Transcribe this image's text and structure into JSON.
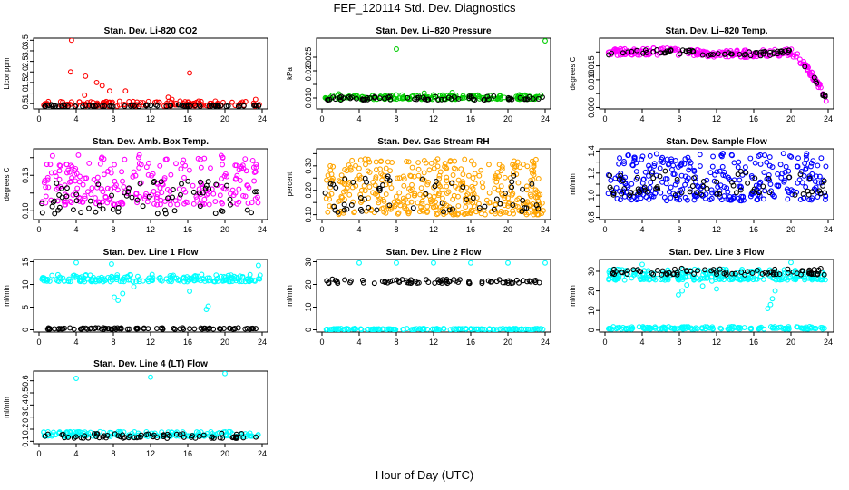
{
  "figure": {
    "title": "FEF_120114  Std. Dev. Diagnostics",
    "xlabel": "Hour of Day (UTC)"
  },
  "chart_data": [
    {
      "type": "scatter",
      "title": "Stan. Dev. Li-820 CO2",
      "ylabel": "Licor ppm",
      "xlim": [
        0,
        24
      ],
      "ylim": [
        0.25,
        3.6
      ],
      "xticks": [
        "0",
        "4",
        "8",
        "12",
        "16",
        "20",
        "24"
      ],
      "yticks": [
        0.5,
        1.0,
        1.5,
        2.0,
        2.5,
        3.0,
        3.5
      ],
      "ytick_labels": [
        "0.5",
        "1.0",
        "1.5",
        "2.0",
        "2.5",
        "3.0",
        "3.5"
      ],
      "series": [
        {
          "color": "#ff0000",
          "x": [
            3.5,
            3.4,
            5.0,
            6.2,
            6.8,
            7.6,
            9.3,
            16.2,
            4.9,
            13.9,
            14.3,
            23.3,
            1.0,
            6.9,
            11.2
          ],
          "y": [
            3.5,
            2.0,
            1.8,
            1.5,
            1.35,
            1.1,
            1.1,
            1.95,
            0.9,
            0.8,
            0.7,
            0.7,
            0.6,
            0.55,
            0.55
          ],
          "band": [
            0.38,
            0.62
          ],
          "n": 130
        },
        {
          "color": "#000000",
          "band": [
            0.37,
            0.45
          ],
          "n": 70
        }
      ]
    },
    {
      "type": "scatter",
      "title": "Stan. Dev. Li–820 Pressure",
      "ylabel": "kPa",
      "xlim": [
        0,
        24
      ],
      "ylim": [
        0.006,
        0.032
      ],
      "xticks": [
        "0",
        "4",
        "8",
        "12",
        "16",
        "20",
        "24"
      ],
      "yticks": [
        0.01,
        0.015,
        0.02,
        0.025
      ],
      "ytick_labels": [
        "0.010",
        "",
        "0.020",
        "0.025"
      ],
      "series": [
        {
          "color": "#00cc00",
          "x": [
            8.0,
            24.0,
            14.0,
            1.8,
            11.0
          ],
          "y": [
            0.028,
            0.031,
            0.012,
            0.0115,
            0.0118
          ],
          "band": [
            0.0095,
            0.0112
          ],
          "n": 180
        },
        {
          "color": "#000000",
          "band": [
            0.0093,
            0.0108
          ],
          "n": 70
        }
      ]
    },
    {
      "type": "scatter",
      "title": "Stan. Dev. Li–820 Temp.",
      "ylabel": "degrees C",
      "xlim": [
        0,
        24
      ],
      "ylim": [
        -0.0005,
        0.025
      ],
      "xticks": [
        "0",
        "4",
        "8",
        "12",
        "16",
        "20",
        "24"
      ],
      "yticks": [
        0.0,
        0.005,
        0.01,
        0.015,
        0.02
      ],
      "ytick_labels": [
        "0.000",
        "",
        "0.010",
        "0.015",
        ""
      ],
      "series": [
        {
          "color": "#ff00ff",
          "curve": "temp",
          "spread": 0.0013,
          "n": 240
        },
        {
          "color": "#000000",
          "curve": "temp",
          "spread": 0.0009,
          "n": 70
        }
      ]
    },
    {
      "type": "scatter",
      "title": "Stan. Dev. Amb. Box Temp.",
      "ylabel": "degrees C",
      "xlim": [
        0,
        24
      ],
      "ylim": [
        0.085,
        0.205
      ],
      "xticks": [
        "0",
        "4",
        "8",
        "12",
        "16",
        "20",
        "24"
      ],
      "yticks": [
        0.1,
        0.13,
        0.16,
        0.19
      ],
      "ytick_labels": [
        "0.10",
        "",
        "0.16",
        ""
      ],
      "series": [
        {
          "color": "#ff00ff",
          "band": [
            0.11,
            0.195
          ],
          "n": 260
        },
        {
          "color": "#000000",
          "band": [
            0.095,
            0.15
          ],
          "n": 70
        }
      ]
    },
    {
      "type": "scatter",
      "title": "Stan. Dev. Gas Stream RH",
      "ylabel": "percent",
      "xlim": [
        0,
        24
      ],
      "ylim": [
        0.08,
        0.37
      ],
      "xticks": [
        "0",
        "4",
        "8",
        "12",
        "16",
        "20",
        "24"
      ],
      "yticks": [
        0.1,
        0.15,
        0.2,
        0.25,
        0.3,
        0.35
      ],
      "ytick_labels": [
        "0.10",
        "",
        "0.20",
        "",
        "0.30",
        ""
      ],
      "series": [
        {
          "color": "#ffa500",
          "band": [
            0.1,
            0.33
          ],
          "n": 420
        },
        {
          "color": "#000000",
          "band": [
            0.11,
            0.26
          ],
          "n": 60
        }
      ]
    },
    {
      "type": "scatter",
      "title": "Stan. Dev. Sample Flow",
      "ylabel": "ml/min",
      "xlim": [
        0,
        24
      ],
      "ylim": [
        0.78,
        1.42
      ],
      "xticks": [
        "0",
        "4",
        "8",
        "12",
        "16",
        "20",
        "24"
      ],
      "yticks": [
        0.8,
        0.9,
        1.0,
        1.1,
        1.2,
        1.3,
        1.4
      ],
      "ytick_labels": [
        "0.8",
        "",
        "1.0",
        "",
        "1.2",
        "",
        "1.4"
      ],
      "series": [
        {
          "color": "#0000ff",
          "band": [
            0.95,
            1.38
          ],
          "n": 330
        },
        {
          "color": "#000000",
          "band": [
            1.0,
            1.22
          ],
          "n": 70
        }
      ]
    },
    {
      "type": "scatter",
      "title": "Stan. Dev. Line 1 Flow",
      "ylabel": "ml/min",
      "xlim": [
        0,
        24
      ],
      "ylim": [
        -0.5,
        15.5
      ],
      "xticks": [
        "0",
        "4",
        "8",
        "12",
        "16",
        "20",
        "24"
      ],
      "yticks": [
        0,
        5,
        10,
        15
      ],
      "ytick_labels": [
        "0",
        "5",
        "10",
        "15"
      ],
      "series": [
        {
          "color": "#00ffff",
          "x": [
            4.0,
            7.8,
            8.1,
            16.2,
            18.0,
            18.2,
            23.6,
            8.5,
            9.0,
            10.2
          ],
          "y": [
            14.8,
            14.5,
            7.2,
            8.5,
            4.5,
            5.2,
            14.2,
            6.5,
            8.0,
            9.5
          ],
          "band": [
            10.6,
            12.2
          ],
          "n": 200
        },
        {
          "color": "#000000",
          "band": [
            0.15,
            0.45
          ],
          "n": 90
        }
      ]
    },
    {
      "type": "scatter",
      "title": "Stan. Dev. Line 2 Flow",
      "ylabel": "ml/min",
      "xlim": [
        0,
        24
      ],
      "ylim": [
        -1,
        31
      ],
      "xticks": [
        "0",
        "4",
        "8",
        "12",
        "16",
        "20",
        "24"
      ],
      "yticks": [
        0,
        10,
        20,
        30
      ],
      "ytick_labels": [
        "0",
        "10",
        "20",
        "30"
      ],
      "series": [
        {
          "color": "#00ffff",
          "x": [
            4.0,
            8.0,
            12.0,
            16.0,
            20.0,
            24.0
          ],
          "y": [
            29.5,
            29.5,
            29.5,
            29.5,
            29.5,
            29.5
          ],
          "band": [
            0.1,
            0.6
          ],
          "n": 150
        },
        {
          "color": "#000000",
          "band": [
            20.5,
            22.3
          ],
          "n": 80
        }
      ]
    },
    {
      "type": "scatter",
      "title": "Stan. Dev. Line 3 Flow",
      "ylabel": "ml/min",
      "xlim": [
        0,
        24
      ],
      "ylim": [
        -1,
        36
      ],
      "xticks": [
        "0",
        "4",
        "8",
        "12",
        "16",
        "20",
        "24"
      ],
      "yticks": [
        0,
        10,
        20,
        30
      ],
      "ytick_labels": [
        "0",
        "10",
        "20",
        "30"
      ],
      "series": [
        {
          "color": "#00ffff",
          "x": [
            4.0,
            7.9,
            8.3,
            8.8,
            10.5,
            17.5,
            17.8,
            18.0,
            18.3,
            20.0,
            11.5,
            12.0
          ],
          "y": [
            33.5,
            18.0,
            20.0,
            23.0,
            22.5,
            11.0,
            13.0,
            16.0,
            20.0,
            34.5,
            25.0,
            21.0
          ],
          "band": [
            25.5,
            31.0
          ],
          "n": 260
        },
        {
          "color": "#00ffff",
          "band": [
            0.5,
            1.8
          ],
          "n": 150
        },
        {
          "color": "#000000",
          "band": [
            28.2,
            31.5
          ],
          "n": 80
        }
      ]
    },
    {
      "type": "scatter",
      "title": "Stan. Dev. Line 4 (LT) Flow",
      "ylabel": "ml/min",
      "xlim": [
        0,
        24
      ],
      "ylim": [
        0.08,
        0.68
      ],
      "xticks": [
        "0",
        "4",
        "8",
        "12",
        "16",
        "20",
        "24"
      ],
      "yticks": [
        0.1,
        0.2,
        0.3,
        0.4,
        0.5,
        0.6
      ],
      "ytick_labels": [
        "0.1",
        "0.2",
        "0.3",
        "0.4",
        "0.5",
        "0.6"
      ],
      "series": [
        {
          "color": "#00ffff",
          "x": [
            4.0,
            12.0,
            20.0
          ],
          "y": [
            0.62,
            0.63,
            0.66
          ],
          "band": [
            0.14,
            0.18
          ],
          "n": 160
        },
        {
          "color": "#000000",
          "band": [
            0.125,
            0.165
          ],
          "n": 70
        }
      ]
    }
  ]
}
